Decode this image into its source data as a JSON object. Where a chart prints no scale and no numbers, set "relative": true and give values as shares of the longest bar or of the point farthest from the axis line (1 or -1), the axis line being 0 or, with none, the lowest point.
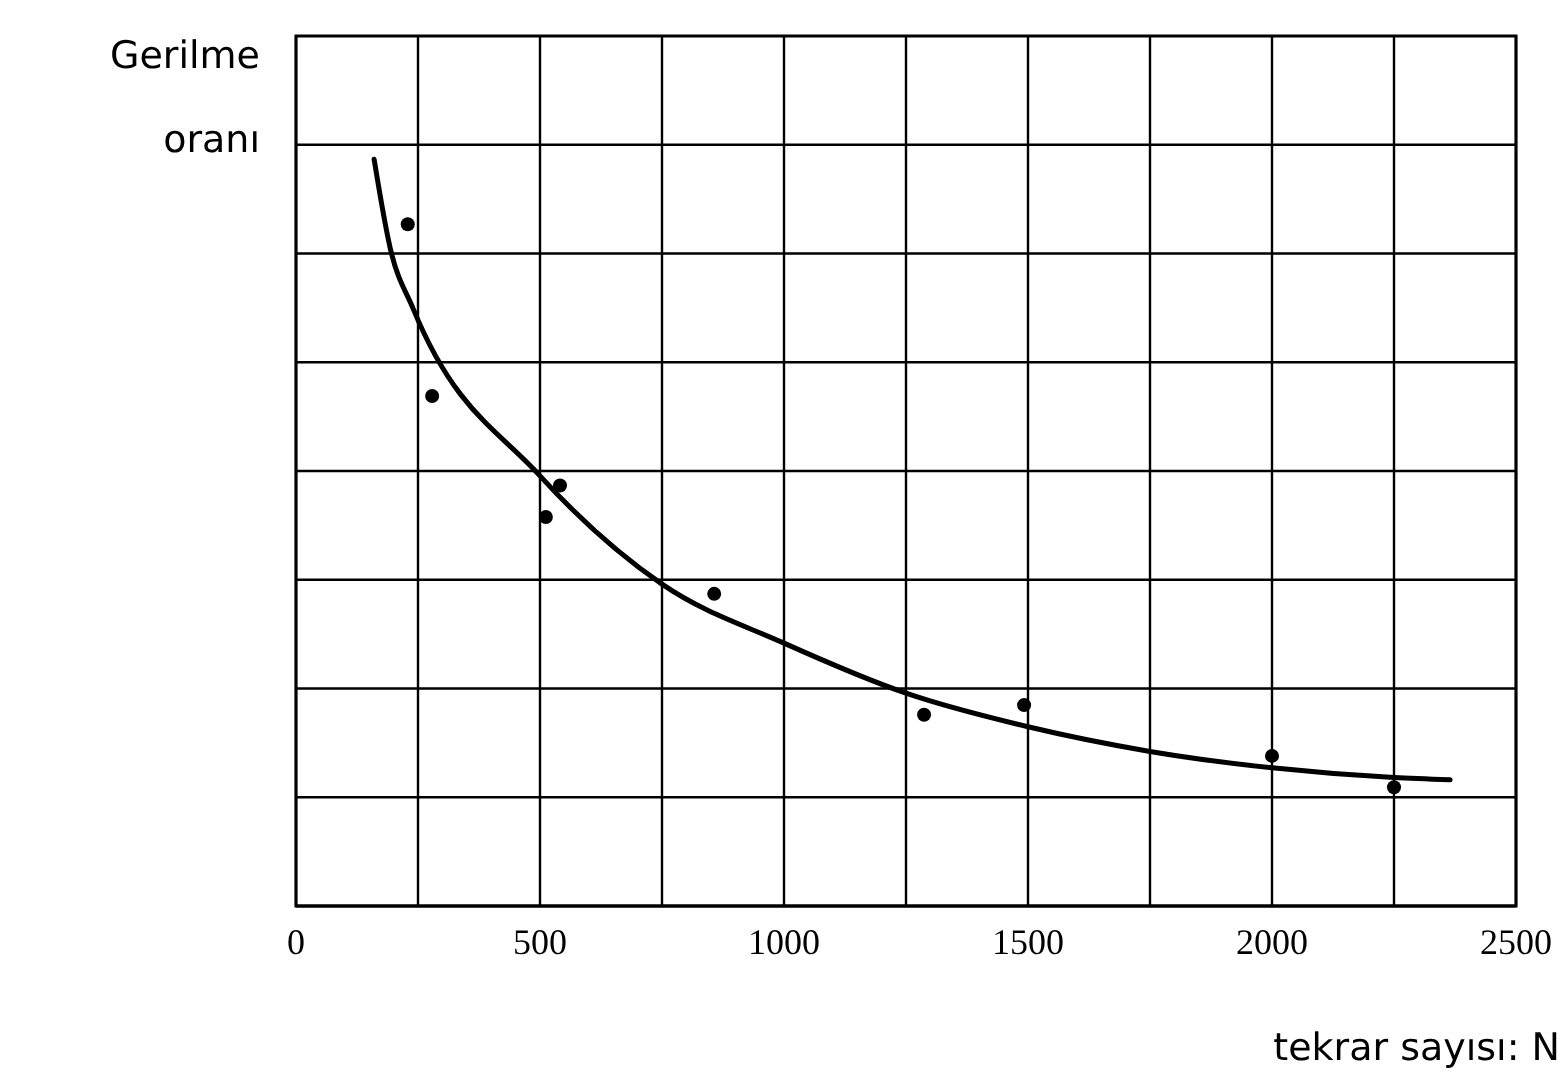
{
  "chart_data": {
    "type": "scatter",
    "relative": true,
    "xlabel": "tekrar sayısı: N",
    "ylabel": "Gerilme oranı",
    "xlim": [
      0,
      2500
    ],
    "xticks": [
      0,
      {
        "value": 250,
        "label": null
      },
      500,
      {
        "value": 750,
        "label": null
      },
      1000,
      {
        "value": 1250,
        "label": null
      },
      1500,
      {
        "value": 1750,
        "label": null
      },
      2000,
      {
        "value": 2250,
        "label": null
      },
      2500
    ],
    "grid": true,
    "series": [
      {
        "color": "#000000",
        "marker": "circle",
        "x": [
          229,
          279,
          512,
          541,
          857,
          1287,
          1492,
          2000,
          2250
        ],
        "values": [
          0.913,
          0.683,
          0.521,
          0.563,
          0.418,
          0.256,
          0.269,
          0.201,
          0.159
        ]
      },
      {
        "type": "line",
        "color": "#000000",
        "line_style": "solid",
        "x": [
          160,
          193,
          240,
          500,
          750,
          1000,
          1250,
          1500,
          1750,
          2000,
          2250,
          2365
        ],
        "values": [
          1,
          0.881,
          0.8,
          0.576,
          0.431,
          0.352,
          0.285,
          0.24,
          0.207,
          0.185,
          0.172,
          0.169
        ]
      }
    ]
  }
}
